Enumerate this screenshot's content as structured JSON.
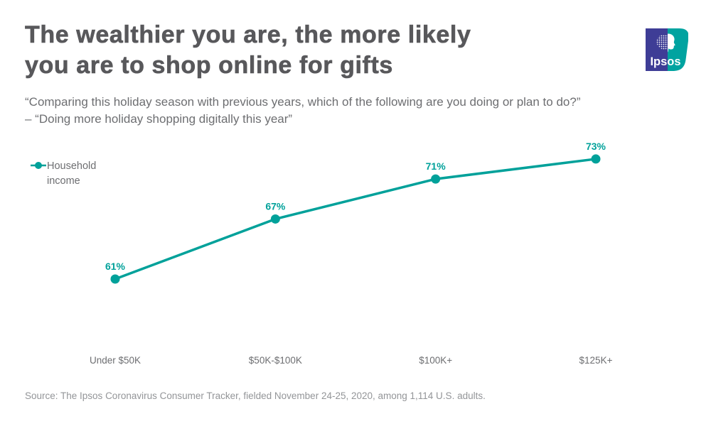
{
  "colors": {
    "accent_teal": "#00A19A",
    "title_gray": "#58585B",
    "text_gray": "#6D6E71",
    "source_gray": "#939598",
    "logo_blue": "#3E3D96",
    "logo_teal": "#00A3A0"
  },
  "header": {
    "title_line1": "The wealthier you are, the more likely",
    "title_line2": "you are to shop online for gifts",
    "subtitle_line1": "“Comparing this holiday season with previous years, which of the following are you doing or plan to do?”",
    "subtitle_line2": "– “Doing more holiday shopping digitally this year”"
  },
  "logo": {
    "text": "Ipsos"
  },
  "chart_data": {
    "type": "line",
    "title": "The wealthier you are, the more likely you are to shop online for gifts",
    "categories": [
      "Under $50K",
      "$50K-$100K",
      "$100K+",
      "$125K+"
    ],
    "series": [
      {
        "name": "Household income",
        "values": [
          61,
          67,
          71,
          73
        ]
      }
    ],
    "labels": [
      "61%",
      "67%",
      "71%",
      "73%"
    ],
    "legend": "Household income",
    "legend_position": "top-left",
    "xlabel": "",
    "ylabel": "",
    "ylim": [
      55,
      78
    ],
    "grid": false,
    "line_color": "#00A19A"
  },
  "footer": {
    "source": "Source: The Ipsos Coronavirus Consumer Tracker, fielded November 24-25, 2020, among 1,114 U.S. adults."
  }
}
